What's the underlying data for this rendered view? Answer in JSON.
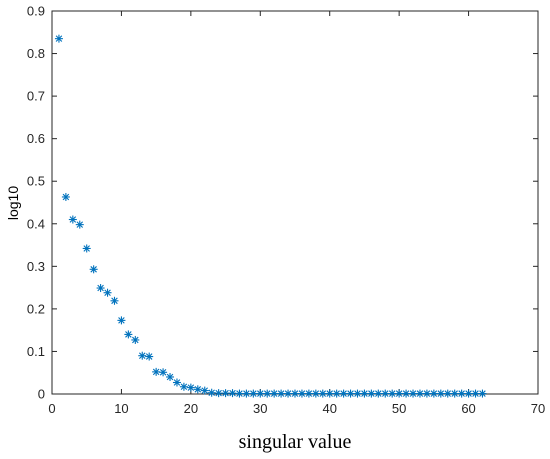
{
  "chart_data": {
    "type": "scatter",
    "marker": "asterisk",
    "xlabel": "singular value",
    "ylabel": "log10",
    "xlim": [
      0,
      70
    ],
    "ylim": [
      0,
      0.9
    ],
    "xticks": [
      "0",
      "10",
      "20",
      "30",
      "40",
      "50",
      "60",
      "70"
    ],
    "yticks": [
      "0",
      "0.1",
      "0.2",
      "0.3",
      "0.4",
      "0.5",
      "0.6",
      "0.7",
      "0.8",
      "0.9"
    ],
    "grid": false,
    "series": [
      {
        "color": "#0072BD",
        "x": [
          1,
          2,
          3,
          4,
          5,
          6,
          7,
          8,
          9,
          10,
          11,
          12,
          13,
          14,
          15,
          16,
          17,
          18,
          19,
          20,
          21,
          22,
          23,
          24,
          25,
          26,
          27,
          28,
          29,
          30,
          31,
          32,
          33,
          34,
          35,
          36,
          37,
          38,
          39,
          40,
          41,
          42,
          43,
          44,
          45,
          46,
          47,
          48,
          49,
          50,
          51,
          52,
          53,
          54,
          55,
          56,
          57,
          58,
          59,
          60,
          61,
          62
        ],
        "y": [
          0.835,
          0.463,
          0.41,
          0.398,
          0.342,
          0.293,
          0.249,
          0.238,
          0.219,
          0.173,
          0.14,
          0.127,
          0.09,
          0.088,
          0.052,
          0.051,
          0.04,
          0.027,
          0.017,
          0.015,
          0.011,
          0.008,
          0.003,
          0.002,
          0.002,
          0.002,
          0.001,
          0.001,
          0.001,
          0.001,
          0.001,
          0.001,
          0.001,
          0.001,
          0.001,
          0.001,
          0.001,
          0.001,
          0.001,
          0.001,
          0.001,
          0.001,
          0.001,
          0.001,
          0.001,
          0.001,
          0.001,
          0.001,
          0.001,
          0.001,
          0.001,
          0.001,
          0.001,
          0.001,
          0.001,
          0.001,
          0.001,
          0.001,
          0.001,
          0.001,
          0.001,
          0.001
        ]
      }
    ]
  }
}
